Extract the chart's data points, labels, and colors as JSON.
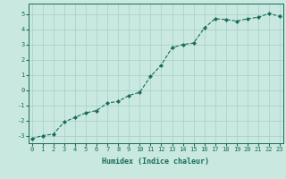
{
  "xlabel": "Humidex (Indice chaleur)",
  "x_values": [
    0,
    1,
    2,
    3,
    4,
    5,
    6,
    7,
    8,
    9,
    10,
    11,
    12,
    13,
    14,
    15,
    16,
    17,
    18,
    19,
    20,
    21,
    22,
    23
  ],
  "y_values": [
    -3.2,
    -3.0,
    -2.9,
    -2.1,
    -1.8,
    -1.5,
    -1.35,
    -0.85,
    -0.75,
    -0.35,
    -0.15,
    0.9,
    1.65,
    2.8,
    3.0,
    3.1,
    4.1,
    4.7,
    4.65,
    4.55,
    4.7,
    4.8,
    5.05,
    4.85
  ],
  "line_color": "#1a6b5a",
  "marker_color": "#1a6b5a",
  "background_color": "#c8e8e0",
  "grid_color": "#a8cfc8",
  "tick_color": "#1a6b5a",
  "label_color": "#1a6b5a",
  "ylim": [
    -3.5,
    5.7
  ],
  "xlim": [
    -0.3,
    23.3
  ],
  "yticks": [
    -3,
    -2,
    -1,
    0,
    1,
    2,
    3,
    4,
    5
  ],
  "xticks": [
    0,
    1,
    2,
    3,
    4,
    5,
    6,
    7,
    8,
    9,
    10,
    11,
    12,
    13,
    14,
    15,
    16,
    17,
    18,
    19,
    20,
    21,
    22,
    23
  ],
  "font_family": "monospace",
  "tick_fontsize": 5.0,
  "xlabel_fontsize": 6.0
}
